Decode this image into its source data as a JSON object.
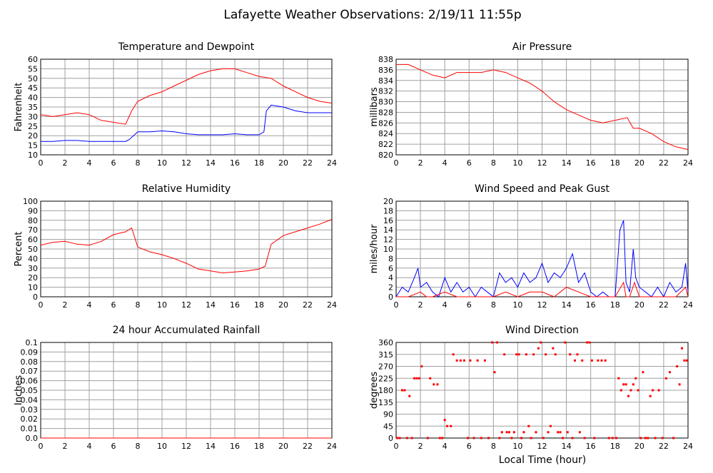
{
  "page": {
    "title": "Lafayette Weather Observations: 2/19/11 11:55p",
    "xlabel": "Local Time (hour)"
  },
  "colors": {
    "red": "#ff0000",
    "blue": "#0000ff",
    "grid": "#a0a0a0",
    "frame": "#000000"
  },
  "chart_data": [
    {
      "id": "temp",
      "type": "line",
      "title": "Temperature and Dewpoint",
      "ylabel": "Fahrenheit",
      "xlim": [
        0,
        24
      ],
      "ylim": [
        10,
        60
      ],
      "xticks": [
        0,
        2,
        4,
        6,
        8,
        10,
        12,
        14,
        16,
        18,
        20,
        22,
        24
      ],
      "yticks": [
        10,
        15,
        20,
        25,
        30,
        35,
        40,
        45,
        50,
        55,
        60
      ],
      "series": [
        {
          "color": "#ff0000",
          "x": [
            0,
            1,
            2,
            3,
            4,
            5,
            6,
            7,
            7.5,
            8,
            9,
            10,
            11,
            12,
            13,
            14,
            15,
            16,
            17,
            18,
            19,
            20,
            21,
            22,
            23,
            24
          ],
          "y": [
            31,
            30,
            31,
            32,
            31,
            28,
            27,
            26,
            33,
            38,
            41,
            43,
            46,
            49,
            52,
            54,
            55,
            55,
            53,
            51,
            50,
            46,
            43,
            40,
            38,
            37
          ]
        },
        {
          "color": "#0000ff",
          "x": [
            0,
            1,
            2,
            3,
            4,
            5,
            6,
            7,
            7.3,
            8,
            9,
            10,
            11,
            12,
            13,
            14,
            15,
            16,
            17,
            18,
            18.4,
            18.6,
            19,
            20,
            21,
            22,
            23,
            24
          ],
          "y": [
            17,
            17,
            17.5,
            17.5,
            17,
            17,
            17,
            17,
            18,
            22,
            22,
            22.5,
            22,
            21,
            20.5,
            20.5,
            20.5,
            21,
            20.5,
            20.5,
            22,
            33,
            36,
            35,
            33,
            32,
            32,
            32
          ]
        }
      ]
    },
    {
      "id": "pressure",
      "type": "line",
      "title": "Air Pressure",
      "ylabel": "millibars",
      "xlim": [
        0,
        24
      ],
      "ylim": [
        820,
        838
      ],
      "xticks": [
        0,
        2,
        4,
        6,
        8,
        10,
        12,
        14,
        16,
        18,
        20,
        22,
        24
      ],
      "yticks": [
        820,
        822,
        824,
        826,
        828,
        830,
        832,
        834,
        836,
        838
      ],
      "series": [
        {
          "color": "#ff0000",
          "x": [
            0,
            1,
            2,
            3,
            4,
            5,
            6,
            7,
            8,
            9,
            10,
            11,
            12,
            13,
            14,
            15,
            16,
            17,
            18,
            19,
            19.5,
            20,
            21,
            22,
            23,
            24
          ],
          "y": [
            837,
            837,
            836,
            835,
            834.5,
            835.5,
            835.5,
            835.5,
            836,
            835.5,
            834.5,
            833.5,
            832,
            830,
            828.5,
            827.5,
            826.5,
            826,
            826.5,
            827,
            825,
            825,
            824,
            822.5,
            821.5,
            821
          ]
        }
      ]
    },
    {
      "id": "humidity",
      "type": "line",
      "title": "Relative Humidity",
      "ylabel": "Percent",
      "xlim": [
        0,
        24
      ],
      "ylim": [
        0,
        100
      ],
      "xticks": [
        0,
        2,
        4,
        6,
        8,
        10,
        12,
        14,
        16,
        18,
        20,
        22,
        24
      ],
      "yticks": [
        0,
        10,
        20,
        30,
        40,
        50,
        60,
        70,
        80,
        90,
        100
      ],
      "series": [
        {
          "color": "#ff0000",
          "x": [
            0,
            1,
            2,
            3,
            4,
            5,
            6,
            7,
            7.5,
            8,
            9,
            10,
            11,
            12,
            13,
            14,
            15,
            16,
            17,
            18,
            18.5,
            19,
            20,
            21,
            22,
            23,
            24
          ],
          "y": [
            54,
            57,
            58,
            55,
            54,
            58,
            65,
            68,
            72,
            52,
            47,
            44,
            40,
            35,
            29,
            27,
            25,
            26,
            27,
            29,
            32,
            55,
            64,
            68,
            72,
            76,
            81
          ]
        }
      ]
    },
    {
      "id": "wind",
      "type": "line",
      "title": "Wind Speed and Peak Gust",
      "ylabel": "miles/hour",
      "xlim": [
        0,
        24
      ],
      "ylim": [
        0,
        20
      ],
      "xticks": [
        0,
        2,
        4,
        6,
        8,
        10,
        12,
        14,
        16,
        18,
        20,
        22,
        24
      ],
      "yticks": [
        0,
        2,
        4,
        6,
        8,
        10,
        12,
        14,
        16,
        18,
        20
      ],
      "series": [
        {
          "color": "#0000ff",
          "x": [
            0,
            0.5,
            1,
            1.5,
            1.8,
            2,
            2.5,
            3,
            3.5,
            4,
            4.5,
            5,
            5.5,
            6,
            6.5,
            7,
            7.5,
            8,
            8.5,
            9,
            9.5,
            10,
            10.5,
            11,
            11.5,
            12,
            12.5,
            13,
            13.5,
            14,
            14.5,
            15,
            15.5,
            16,
            16.5,
            17,
            17.5,
            18,
            18.4,
            18.7,
            18.9,
            19.2,
            19.5,
            19.7,
            20,
            20.5,
            21,
            21.5,
            22,
            22.5,
            23,
            23.5,
            23.8,
            24
          ],
          "y": [
            0,
            2,
            1,
            4,
            6,
            2,
            3,
            1,
            0,
            4,
            1,
            3,
            1,
            2,
            0,
            2,
            1,
            0,
            5,
            3,
            4,
            2,
            5,
            3,
            4,
            7,
            3,
            5,
            4,
            6,
            9,
            3,
            5,
            1,
            0,
            1,
            0,
            0,
            14,
            16,
            3,
            1,
            10,
            4,
            2,
            1,
            0,
            2,
            0,
            3,
            1,
            2,
            7,
            1
          ]
        },
        {
          "color": "#ff0000",
          "x": [
            0,
            1,
            2,
            2.5,
            3,
            4,
            5,
            6,
            7,
            8,
            9,
            10,
            11,
            12,
            13,
            14,
            15,
            16,
            17,
            18,
            18.7,
            18.9,
            19.2,
            19.6,
            20,
            21,
            22,
            23,
            23.8,
            24
          ],
          "y": [
            0,
            0,
            1,
            0,
            0,
            1,
            0,
            0,
            0,
            0,
            1,
            0,
            1,
            1,
            0,
            2,
            1,
            0,
            0,
            0,
            3,
            0,
            0,
            3,
            0,
            0,
            0,
            0,
            2,
            0
          ]
        }
      ]
    },
    {
      "id": "rain",
      "type": "line",
      "title": "24 hour Accumulated Rainfall",
      "ylabel": "Inches",
      "xlim": [
        0,
        24
      ],
      "ylim": [
        0,
        0.1
      ],
      "xticks": [
        0,
        2,
        4,
        6,
        8,
        10,
        12,
        14,
        16,
        18,
        20,
        22,
        24
      ],
      "yticks": [
        0,
        0.01,
        0.02,
        0.03,
        0.04,
        0.05,
        0.06,
        0.07,
        0.08,
        0.09,
        0.1
      ],
      "ytick_labels": [
        "0.0",
        "0.01",
        "0.02",
        "0.03",
        "0.04",
        "0.05",
        "0.06",
        "0.07",
        "0.08",
        "0.09",
        "0.1"
      ],
      "series": [
        {
          "color": "#ff0000",
          "x": [
            0,
            24
          ],
          "y": [
            0,
            0
          ]
        }
      ]
    },
    {
      "id": "direction",
      "type": "scatter",
      "title": "Wind Direction",
      "ylabel": "degrees",
      "xlim": [
        0,
        24
      ],
      "ylim": [
        0,
        360
      ],
      "xticks": [
        0,
        2,
        4,
        6,
        8,
        10,
        12,
        14,
        16,
        18,
        20,
        22,
        24
      ],
      "yticks": [
        0,
        45,
        90,
        135,
        180,
        225,
        270,
        315,
        360
      ],
      "series": [
        {
          "color": "#ff0000",
          "x": [
            0.1,
            0.3,
            0.5,
            0.7,
            0.9,
            1.1,
            1.3,
            1.5,
            1.7,
            1.9,
            2.1,
            2.6,
            2.8,
            3.1,
            3.4,
            3.6,
            3.8,
            4.0,
            4.2,
            4.5,
            4.7,
            5.0,
            5.3,
            5.6,
            5.9,
            6.1,
            6.4,
            6.7,
            7.0,
            7.3,
            7.6,
            7.9,
            8.1,
            8.3,
            8.5,
            8.7,
            8.9,
            9.1,
            9.3,
            9.5,
            9.7,
            9.9,
            10.1,
            10.3,
            10.5,
            10.7,
            10.9,
            11.1,
            11.3,
            11.5,
            11.7,
            11.9,
            12.1,
            12.3,
            12.5,
            12.7,
            12.9,
            13.1,
            13.3,
            13.5,
            13.7,
            13.9,
            14.1,
            14.3,
            14.5,
            14.7,
            14.9,
            15.1,
            15.3,
            15.5,
            15.7,
            15.9,
            16.1,
            16.3,
            16.6,
            16.9,
            17.2,
            17.5,
            17.8,
            18.1,
            18.3,
            18.5,
            18.7,
            18.9,
            19.1,
            19.3,
            19.5,
            19.7,
            19.9,
            20.1,
            20.3,
            20.5,
            20.7,
            20.9,
            21.1,
            21.3,
            21.6,
            21.9,
            22.2,
            22.5,
            22.8,
            23.1,
            23.3,
            23.5,
            23.7,
            23.9
          ],
          "y": [
            0,
            0,
            180,
            180,
            0,
            158,
            0,
            225,
            225,
            225,
            270,
            0,
            225,
            202,
            202,
            0,
            0,
            68,
            45,
            45,
            315,
            292,
            292,
            292,
            0,
            292,
            0,
            292,
            0,
            292,
            0,
            360,
            248,
            360,
            0,
            22,
            315,
            22,
            22,
            0,
            22,
            315,
            315,
            0,
            22,
            315,
            45,
            0,
            315,
            22,
            338,
            360,
            0,
            315,
            22,
            45,
            338,
            315,
            22,
            22,
            0,
            360,
            22,
            315,
            0,
            292,
            315,
            22,
            292,
            0,
            360,
            360,
            292,
            0,
            292,
            292,
            292,
            0,
            0,
            0,
            225,
            180,
            202,
            202,
            158,
            180,
            202,
            225,
            180,
            0,
            248,
            0,
            0,
            158,
            180,
            0,
            180,
            0,
            225,
            248,
            0,
            270,
            202,
            338,
            292,
            292
          ]
        }
      ]
    }
  ]
}
